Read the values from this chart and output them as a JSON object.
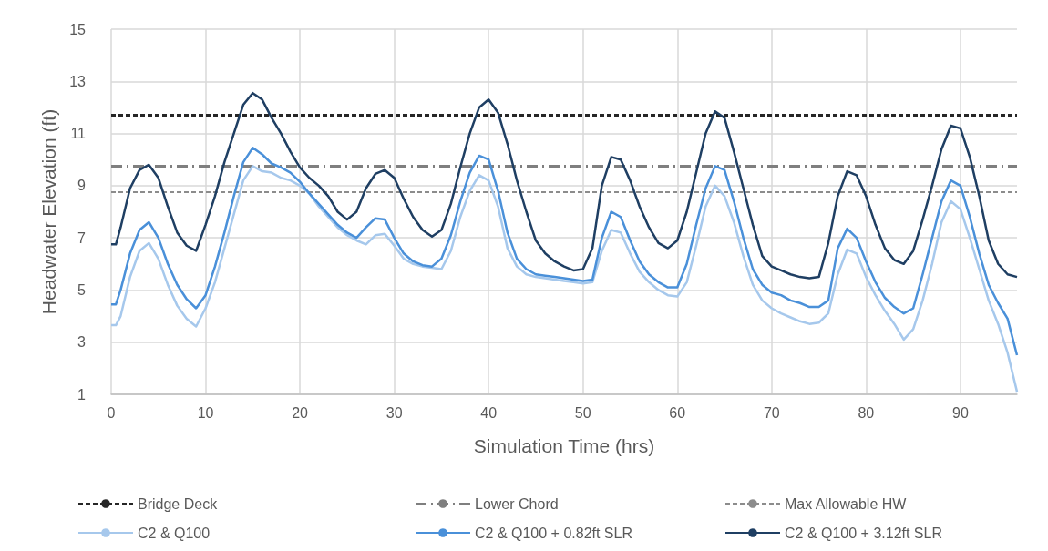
{
  "chart_data": {
    "type": "line",
    "xlabel": "Simulation Time (hrs)",
    "ylabel": "Headwater Elevation (ft)",
    "x": [
      0,
      0.5,
      1,
      2,
      3,
      4,
      5,
      6,
      7,
      8,
      9,
      10,
      11,
      12,
      13,
      14,
      15,
      16,
      17,
      18,
      19,
      20,
      21,
      22,
      23,
      24,
      25,
      26,
      27,
      28,
      29,
      30,
      31,
      32,
      33,
      34,
      35,
      36,
      37,
      38,
      39,
      40,
      41,
      42,
      43,
      44,
      45,
      46,
      47,
      48,
      49,
      50,
      51,
      52,
      53,
      54,
      55,
      56,
      57,
      58,
      59,
      60,
      61,
      62,
      63,
      64,
      65,
      66,
      67,
      68,
      69,
      70,
      71,
      72,
      73,
      74,
      75,
      76,
      77,
      78,
      79,
      80,
      81,
      82,
      83,
      84,
      85,
      86,
      87,
      88,
      89,
      90,
      91,
      92,
      93,
      94,
      95,
      96
    ],
    "series": [
      {
        "name": "C2 & Q100",
        "color": "#a6c8ec",
        "values": [
          3.65,
          3.65,
          4.0,
          5.5,
          6.5,
          6.8,
          6.2,
          5.2,
          4.4,
          3.9,
          3.6,
          4.3,
          5.3,
          6.6,
          7.9,
          9.2,
          9.75,
          9.55,
          9.5,
          9.3,
          9.2,
          9.0,
          8.7,
          8.2,
          7.8,
          7.4,
          7.1,
          6.9,
          6.75,
          7.1,
          7.15,
          6.7,
          6.2,
          6.0,
          5.9,
          5.85,
          5.8,
          6.5,
          7.8,
          8.8,
          9.4,
          9.2,
          8.2,
          6.6,
          5.9,
          5.6,
          5.5,
          5.45,
          5.4,
          5.35,
          5.3,
          5.25,
          5.3,
          6.5,
          7.3,
          7.2,
          6.4,
          5.7,
          5.3,
          5.0,
          4.8,
          4.75,
          5.3,
          6.7,
          8.2,
          9.0,
          8.6,
          7.6,
          6.3,
          5.2,
          4.6,
          4.3,
          4.1,
          3.95,
          3.8,
          3.7,
          3.75,
          4.1,
          5.6,
          6.55,
          6.4,
          5.5,
          4.8,
          4.2,
          3.7,
          3.1,
          3.5,
          4.6,
          6.0,
          7.6,
          8.4,
          8.1,
          7.0,
          5.8,
          4.6,
          3.7,
          2.6,
          1.1
        ]
      },
      {
        "name": "C2 & Q100 + 0.82ft SLR",
        "color": "#4a90d9",
        "values": [
          4.45,
          4.45,
          5.0,
          6.4,
          7.3,
          7.6,
          7.0,
          6.0,
          5.2,
          4.65,
          4.3,
          4.8,
          5.9,
          7.2,
          8.6,
          9.9,
          10.45,
          10.2,
          9.85,
          9.7,
          9.5,
          9.15,
          8.7,
          8.3,
          7.9,
          7.5,
          7.2,
          7.0,
          7.4,
          7.75,
          7.7,
          7.0,
          6.4,
          6.1,
          5.95,
          5.9,
          6.2,
          7.1,
          8.4,
          9.5,
          10.15,
          10.0,
          8.8,
          7.2,
          6.2,
          5.8,
          5.6,
          5.55,
          5.5,
          5.45,
          5.4,
          5.35,
          5.4,
          7.0,
          8.0,
          7.8,
          6.9,
          6.1,
          5.6,
          5.3,
          5.1,
          5.1,
          6.0,
          7.5,
          8.9,
          9.75,
          9.6,
          8.4,
          7.0,
          5.8,
          5.2,
          4.9,
          4.8,
          4.6,
          4.5,
          4.35,
          4.35,
          4.6,
          6.6,
          7.35,
          7.0,
          6.1,
          5.3,
          4.7,
          4.35,
          4.1,
          4.3,
          5.6,
          7.0,
          8.4,
          9.2,
          9.0,
          7.8,
          6.4,
          5.2,
          4.5,
          3.9,
          2.5
        ]
      },
      {
        "name": "C2 & Q100 + 3.12ft SLR",
        "color": "#1f3f63",
        "values": [
          6.75,
          6.75,
          7.4,
          8.9,
          9.6,
          9.8,
          9.3,
          8.2,
          7.2,
          6.7,
          6.5,
          7.5,
          8.6,
          9.9,
          11.0,
          12.1,
          12.55,
          12.3,
          11.6,
          11.0,
          10.3,
          9.7,
          9.3,
          9.0,
          8.6,
          8.0,
          7.7,
          8.0,
          8.9,
          9.45,
          9.6,
          9.3,
          8.5,
          7.8,
          7.3,
          7.05,
          7.3,
          8.3,
          9.7,
          11.0,
          12.0,
          12.3,
          11.8,
          10.6,
          9.2,
          8.0,
          6.9,
          6.4,
          6.1,
          5.9,
          5.75,
          5.8,
          6.6,
          9.0,
          10.1,
          10.0,
          9.2,
          8.2,
          7.4,
          6.8,
          6.6,
          6.9,
          8.0,
          9.5,
          11.0,
          11.85,
          11.6,
          10.3,
          8.9,
          7.5,
          6.3,
          5.9,
          5.75,
          5.6,
          5.5,
          5.45,
          5.5,
          6.8,
          8.6,
          9.55,
          9.4,
          8.6,
          7.5,
          6.6,
          6.15,
          6.0,
          6.5,
          7.7,
          9.0,
          10.4,
          11.3,
          11.2,
          10.1,
          8.6,
          6.9,
          6.0,
          5.6,
          5.5
        ]
      }
    ],
    "ref_lines": [
      {
        "axis": "y",
        "value": 11.7,
        "label": "Bridge Deck",
        "color": "#262626",
        "line_style": "dashed"
      },
      {
        "axis": "y",
        "value": 9.75,
        "label": "Lower Chord",
        "color": "#7f7f7f",
        "line_style": "dashdot"
      },
      {
        "axis": "y",
        "value": 8.75,
        "label": "Max Allowable HW",
        "color": "#8c8c8c",
        "line_style": "dashed"
      }
    ],
    "xlim": [
      0,
      96
    ],
    "xticks": [
      0,
      10,
      20,
      30,
      40,
      50,
      60,
      70,
      80,
      90
    ],
    "ylim": [
      1,
      15
    ],
    "yticks": [
      1,
      3,
      5,
      7,
      9,
      11,
      13,
      15
    ],
    "grid": true,
    "legend": "bottom",
    "line_style": "solid",
    "marker": "none"
  }
}
